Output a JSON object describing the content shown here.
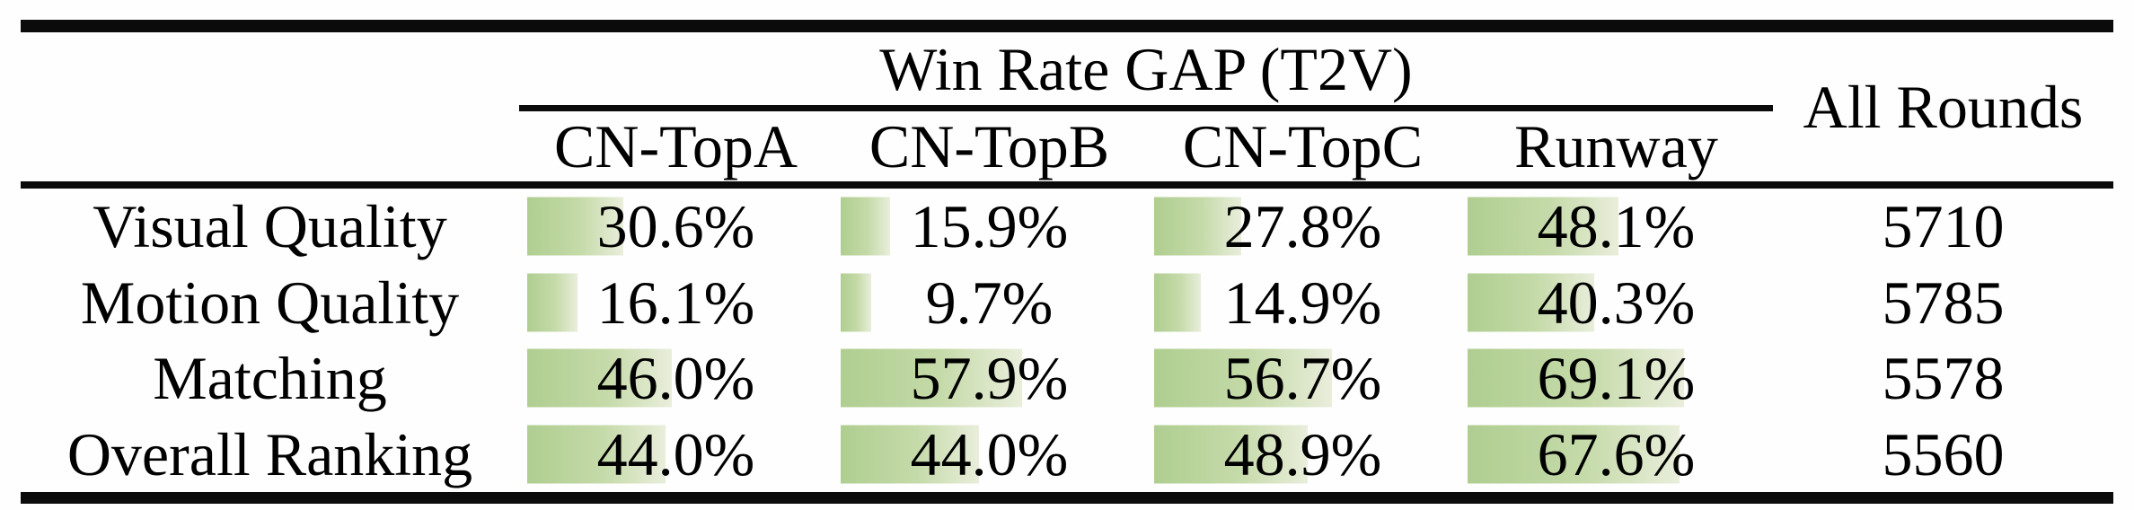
{
  "table": {
    "group_header": "Win Rate GAP (T2V)",
    "all_rounds_header": "All Rounds",
    "columns": [
      "CN-TopA",
      "CN-TopB",
      "CN-TopC",
      "Runway"
    ],
    "rows": [
      {
        "label": "Visual Quality",
        "values": [
          "30.6%",
          "15.9%",
          "27.8%",
          "48.1%"
        ],
        "all_rounds": "5710"
      },
      {
        "label": "Motion Quality",
        "values": [
          "16.1%",
          "9.7%",
          "14.9%",
          "40.3%"
        ],
        "all_rounds": "5785"
      },
      {
        "label": "Matching",
        "values": [
          "46.0%",
          "57.9%",
          "56.7%",
          "69.1%"
        ],
        "all_rounds": "5578"
      },
      {
        "label": "Overall Ranking",
        "values": [
          "44.0%",
          "44.0%",
          "48.9%",
          "67.6%"
        ],
        "all_rounds": "5560"
      }
    ],
    "colors": {
      "bar_gradient_start": "#afce90",
      "bar_gradient_end": "#e9eedb",
      "rule_color": "#0b0b0b",
      "text_color": "#000000"
    }
  }
}
